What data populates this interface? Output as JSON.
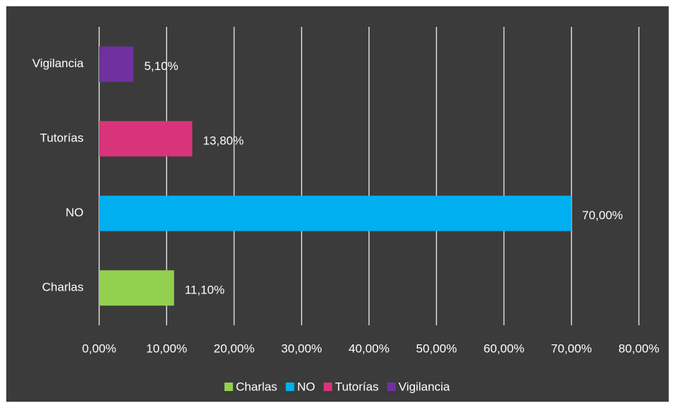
{
  "chart_data": {
    "type": "hbar",
    "categories": [
      "Charlas",
      "NO",
      "Tutorías",
      "Vigilancia"
    ],
    "values": [
      11.1,
      70,
      13.8,
      5.1
    ],
    "value_labels": [
      "11,10%",
      "70,00%",
      "13,80%",
      "5,10%"
    ],
    "colors": [
      "#92d050",
      "#00b0f0",
      "#d9347a",
      "#7030a0"
    ],
    "xlim": [
      0,
      80
    ],
    "xticks": [
      {
        "value": 0,
        "label": "0,00%"
      },
      {
        "value": 10,
        "label": "10,00%"
      },
      {
        "value": 20,
        "label": "20,00%"
      },
      {
        "value": 30,
        "label": "30,00%"
      },
      {
        "value": 40,
        "label": "40,00%"
      },
      {
        "value": 50,
        "label": "50,00%"
      },
      {
        "value": 60,
        "label": "60,00%"
      },
      {
        "value": 70,
        "label": "70,00%"
      },
      {
        "value": 80,
        "label": "80,00%"
      }
    ],
    "grid": true,
    "legend": "bottom"
  }
}
